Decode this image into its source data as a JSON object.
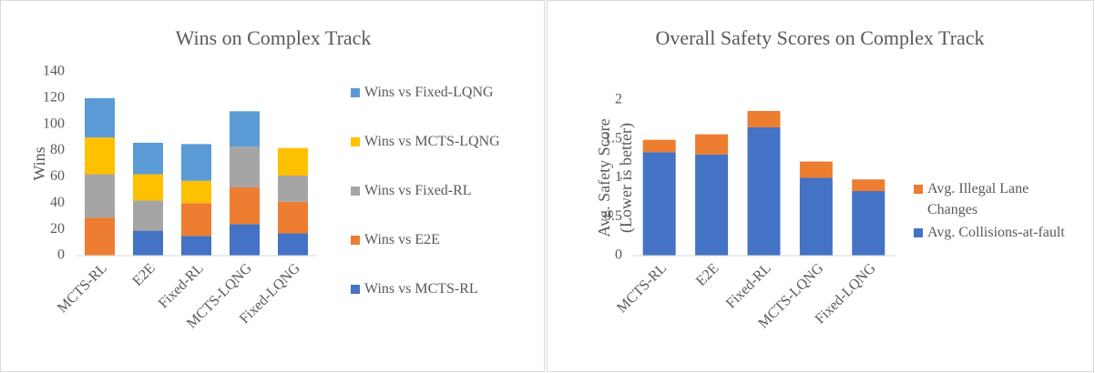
{
  "chart_data": [
    {
      "type": "stacked_bar",
      "title": "Wins on Complex Track",
      "y_label": [
        "Wins"
      ],
      "categories": [
        "MCTS-RL",
        "E2E",
        "Fixed-RL",
        "MCTS-LQNG",
        "Fixed-LQNG"
      ],
      "series": [
        {
          "name": "Wins vs MCTS-RL",
          "color": "#4472c4",
          "values": [
            0,
            19,
            15,
            24,
            17
          ]
        },
        {
          "name": "Wins vs E2E",
          "color": "#ed7d31",
          "values": [
            29,
            0,
            25,
            28,
            24
          ]
        },
        {
          "name": "Wins vs Fixed-RL",
          "color": "#a5a5a5",
          "values": [
            33,
            23,
            0,
            31,
            20
          ]
        },
        {
          "name": "Wins vs MCTS-LQNG",
          "color": "#ffc000",
          "values": [
            28,
            20,
            17,
            0,
            21
          ]
        },
        {
          "name": "Wins vs Fixed-LQNG",
          "color": "#5b9bd5",
          "values": [
            30,
            24,
            28,
            27,
            0
          ]
        }
      ],
      "ylim": [
        0,
        140
      ],
      "yticks": [
        0,
        20,
        40,
        60,
        80,
        100,
        120,
        140
      ],
      "grid": false,
      "legend": "right"
    },
    {
      "type": "stacked_bar",
      "title": "Overall Safety Scores on Complex Track",
      "y_label": [
        "Avg. Safety Score",
        "(Lower is better)"
      ],
      "categories": [
        "MCTS-RL",
        "E2E",
        "Fixed-RL",
        "MCTS-LQNG",
        "Fixed-LQNG"
      ],
      "series": [
        {
          "name": "Avg. Collisions-at-fault",
          "color": "#4472c4",
          "values": [
            1.33,
            1.3,
            1.65,
            1.0,
            0.83
          ]
        },
        {
          "name": "Avg. Illegal Lane Changes",
          "color": "#ed7d31",
          "values": [
            0.16,
            0.26,
            0.21,
            0.21,
            0.15
          ]
        }
      ],
      "ylim": [
        0,
        2
      ],
      "yticks": [
        0,
        0.5,
        1,
        1.5,
        2
      ],
      "grid": false,
      "legend": "right"
    }
  ]
}
